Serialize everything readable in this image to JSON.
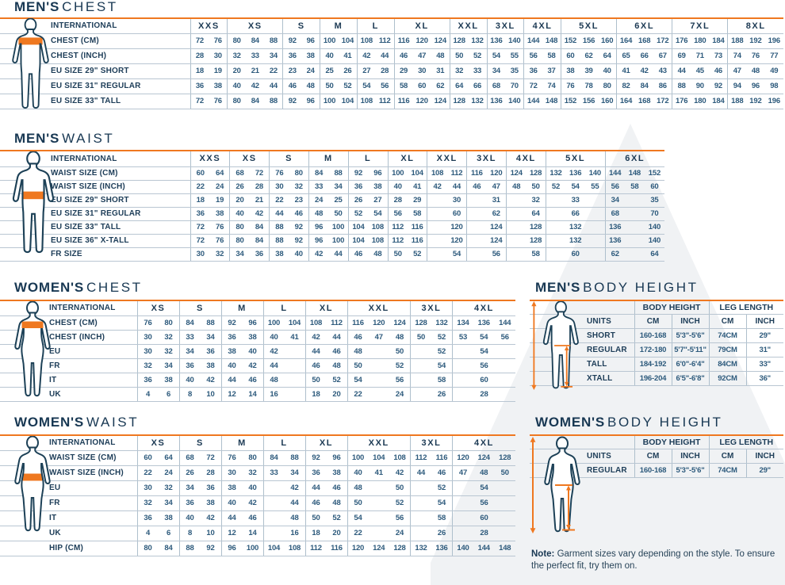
{
  "page": {
    "note_bold": "Note:",
    "note_text": "Garment sizes vary depending on the style. To ensure the perfect fit, try them on."
  },
  "colors": {
    "accent_orange": "#ef7820",
    "navy_outline": "#1d4157",
    "number_blue": "#2d5a7c",
    "label_navy": "#1d3d58",
    "grid_line": "#b9c6d2"
  },
  "tables": {
    "mens_chest": {
      "title_bold": "MEN'S",
      "title_rest": "CHEST",
      "label_header": "INTERNATIONAL",
      "groups": [
        {
          "label": "XXS",
          "cols": 2
        },
        {
          "label": "XS",
          "cols": 3
        },
        {
          "label": "S",
          "cols": 2
        },
        {
          "label": "M",
          "cols": 2
        },
        {
          "label": "L",
          "cols": 2
        },
        {
          "label": "XL",
          "cols": 3
        },
        {
          "label": "XXL",
          "cols": 2
        },
        {
          "label": "3XL",
          "cols": 2
        },
        {
          "label": "4XL",
          "cols": 2
        },
        {
          "label": "5XL",
          "cols": 3
        },
        {
          "label": "6XL",
          "cols": 3
        },
        {
          "label": "7XL",
          "cols": 3
        },
        {
          "label": "8XL",
          "cols": 3
        }
      ],
      "rows": [
        {
          "label": "CHEST (CM)",
          "cells": [
            "72",
            "76",
            "80",
            "84",
            "88",
            "92",
            "96",
            "100",
            "104",
            "108",
            "112",
            "116",
            "120",
            "124",
            "128",
            "132",
            "136",
            "140",
            "144",
            "148",
            "152",
            "156",
            "160",
            "164",
            "168",
            "172",
            "176",
            "180",
            "184",
            "188",
            "192",
            "196"
          ]
        },
        {
          "label": "CHEST (INCH)",
          "cells": [
            "28",
            "30",
            "32",
            "33",
            "34",
            "36",
            "38",
            "40",
            "41",
            "42",
            "44",
            "46",
            "47",
            "48",
            "50",
            "52",
            "54",
            "55",
            "56",
            "58",
            "60",
            "62",
            "64",
            "65",
            "66",
            "67",
            "69",
            "71",
            "73",
            "74",
            "76",
            "77"
          ]
        },
        {
          "label": "EU SIZE 29\" SHORT",
          "cells": [
            "18",
            "19",
            "20",
            "21",
            "22",
            "23",
            "24",
            "25",
            "26",
            "27",
            "28",
            "29",
            "30",
            "31",
            "32",
            "33",
            "34",
            "35",
            "36",
            "37",
            "38",
            "39",
            "40",
            "41",
            "42",
            "43",
            "44",
            "45",
            "46",
            "47",
            "48",
            "49"
          ]
        },
        {
          "label": "EU SIZE 31\" REGULAR",
          "cells": [
            "36",
            "38",
            "40",
            "42",
            "44",
            "46",
            "48",
            "50",
            "52",
            "54",
            "56",
            "58",
            "60",
            "62",
            "64",
            "66",
            "68",
            "70",
            "72",
            "74",
            "76",
            "78",
            "80",
            "82",
            "84",
            "86",
            "88",
            "90",
            "92",
            "94",
            "96",
            "98"
          ]
        },
        {
          "label": "EU SIZE 33\" TALL",
          "cells": [
            "72",
            "76",
            "80",
            "84",
            "88",
            "92",
            "96",
            "100",
            "104",
            "108",
            "112",
            "116",
            "120",
            "124",
            "128",
            "132",
            "136",
            "140",
            "144",
            "148",
            "152",
            "156",
            "160",
            "164",
            "168",
            "172",
            "176",
            "180",
            "184",
            "188",
            "192",
            "196"
          ]
        }
      ]
    },
    "mens_waist": {
      "title_bold": "MEN'S",
      "title_rest": "WAIST",
      "label_header": "INTERNATIONAL",
      "groups": [
        {
          "label": "XXS",
          "cols": 2
        },
        {
          "label": "XS",
          "cols": 2
        },
        {
          "label": "S",
          "cols": 2
        },
        {
          "label": "M",
          "cols": 2
        },
        {
          "label": "L",
          "cols": 2
        },
        {
          "label": "XL",
          "cols": 2
        },
        {
          "label": "XXL",
          "cols": 2
        },
        {
          "label": "3XL",
          "cols": 2
        },
        {
          "label": "4XL",
          "cols": 2
        },
        {
          "label": "5XL",
          "cols": 3
        },
        {
          "label": "6XL",
          "cols": 3
        }
      ],
      "rows": [
        {
          "label": "WAIST SIZE (CM)",
          "cells": [
            "60",
            "64",
            "68",
            "72",
            "76",
            "80",
            "84",
            "88",
            "92",
            "96",
            "100",
            "104",
            "108",
            "112",
            "116",
            "120",
            "124",
            "128",
            "132",
            "136",
            "140",
            "144",
            "148",
            "152"
          ]
        },
        {
          "label": "WAIST SIZE (INCH)",
          "cells": [
            "22",
            "24",
            "26",
            "28",
            "30",
            "32",
            "33",
            "34",
            "36",
            "38",
            "40",
            "41",
            "42",
            "44",
            "46",
            "47",
            "48",
            "50",
            "52",
            "54",
            "55",
            "56",
            "58",
            "60"
          ]
        },
        {
          "label": "EU SIZE 29\" SHORT",
          "cells": [
            "18",
            "19",
            "20",
            "21",
            "22",
            "23",
            "24",
            "25",
            "26",
            "27",
            "28",
            "29",
            "",
            "30",
            "",
            "31",
            "",
            "32",
            [
              "33",
              3
            ],
            "34",
            "",
            "35"
          ]
        },
        {
          "label": "EU SIZE 31\" REGULAR",
          "cells": [
            "36",
            "38",
            "40",
            "42",
            "44",
            "46",
            "48",
            "50",
            "52",
            "54",
            "56",
            "58",
            "",
            "60",
            "",
            "62",
            "",
            "64",
            [
              "66",
              3
            ],
            "68",
            "",
            "70"
          ]
        },
        {
          "label": "EU SIZE 33\" TALL",
          "cells": [
            "72",
            "76",
            "80",
            "84",
            "88",
            "92",
            "96",
            "100",
            "104",
            "108",
            "112",
            "116",
            "",
            "120",
            "",
            "124",
            "",
            "128",
            [
              "132",
              3
            ],
            "136",
            "",
            "140"
          ]
        },
        {
          "label": "EU SIZE 36\" X-TALL",
          "cells": [
            "72",
            "76",
            "80",
            "84",
            "88",
            "92",
            "96",
            "100",
            "104",
            "108",
            "112",
            "116",
            "",
            "120",
            "",
            "124",
            "",
            "128",
            [
              "132",
              3
            ],
            "136",
            "",
            "140"
          ]
        },
        {
          "label": "FR SIZE",
          "cells": [
            "30",
            "32",
            "34",
            "36",
            "38",
            "40",
            "42",
            "44",
            "46",
            "48",
            "50",
            "52",
            "",
            "54",
            "",
            "56",
            "",
            "58",
            [
              "60",
              3
            ],
            "62",
            "",
            "64"
          ]
        }
      ]
    },
    "womens_chest": {
      "title_bold": "WOMEN'S",
      "title_rest": "CHEST",
      "label_header": "INTERNATIONAL",
      "groups": [
        {
          "label": "XS",
          "cols": 2
        },
        {
          "label": "S",
          "cols": 2
        },
        {
          "label": "M",
          "cols": 2
        },
        {
          "label": "L",
          "cols": 2
        },
        {
          "label": "XL",
          "cols": 2
        },
        {
          "label": "XXL",
          "cols": 3
        },
        {
          "label": "3XL",
          "cols": 2
        },
        {
          "label": "4XL",
          "cols": 3
        }
      ],
      "rows": [
        {
          "label": "CHEST (CM)",
          "cells": [
            "76",
            "80",
            "84",
            "88",
            "92",
            "96",
            "100",
            "104",
            "108",
            "112",
            "116",
            "120",
            "124",
            "128",
            "132",
            "134",
            "136",
            "144"
          ]
        },
        {
          "label": "CHEST (INCH)",
          "cells": [
            "30",
            "32",
            "33",
            "34",
            "36",
            "38",
            "40",
            "41",
            "42",
            "44",
            "46",
            "47",
            "48",
            "50",
            "52",
            "53",
            "54",
            "56"
          ]
        },
        {
          "label": "EU",
          "cells": [
            "30",
            "32",
            "34",
            "36",
            "38",
            "40",
            "42",
            "",
            "44",
            "46",
            "48",
            "",
            "50",
            "",
            "52",
            [
              "54",
              3
            ]
          ]
        },
        {
          "label": "FR",
          "cells": [
            "32",
            "34",
            "36",
            "38",
            "40",
            "42",
            "44",
            "",
            "46",
            "48",
            "50",
            "",
            "52",
            "",
            "54",
            [
              "56",
              3
            ]
          ]
        },
        {
          "label": "IT",
          "cells": [
            "36",
            "38",
            "40",
            "42",
            "44",
            "46",
            "48",
            "",
            "50",
            "52",
            "54",
            "",
            "56",
            "",
            "58",
            [
              "60",
              3
            ]
          ]
        },
        {
          "label": "UK",
          "cells": [
            "4",
            "6",
            "8",
            "10",
            "12",
            "14",
            "16",
            "",
            "18",
            "20",
            "22",
            "",
            "24",
            "",
            "26",
            [
              "28",
              3
            ]
          ]
        }
      ]
    },
    "womens_waist": {
      "title_bold": "WOMEN'S",
      "title_rest": "WAIST",
      "label_header": "INTERNATIONAL",
      "groups": [
        {
          "label": "XS",
          "cols": 2
        },
        {
          "label": "S",
          "cols": 2
        },
        {
          "label": "M",
          "cols": 2
        },
        {
          "label": "L",
          "cols": 2
        },
        {
          "label": "XL",
          "cols": 2
        },
        {
          "label": "XXL",
          "cols": 3
        },
        {
          "label": "3XL",
          "cols": 2
        },
        {
          "label": "4XL",
          "cols": 3
        }
      ],
      "rows": [
        {
          "label": "WAIST SIZE (CM)",
          "cells": [
            "60",
            "64",
            "68",
            "72",
            "76",
            "80",
            "84",
            "88",
            "92",
            "96",
            "100",
            "104",
            "108",
            "112",
            "116",
            "120",
            "124",
            "128"
          ]
        },
        {
          "label": "WAIST SIZE (INCH)",
          "cells": [
            "22",
            "24",
            "26",
            "28",
            "30",
            "32",
            "33",
            "34",
            "36",
            "38",
            "40",
            "41",
            "42",
            "44",
            "46",
            "47",
            "48",
            "50"
          ]
        },
        {
          "label": "EU",
          "cells": [
            "30",
            "32",
            "34",
            "36",
            "38",
            "40",
            "",
            "42",
            "44",
            "46",
            "48",
            "",
            "50",
            "",
            "52",
            [
              "54",
              3
            ]
          ]
        },
        {
          "label": "FR",
          "cells": [
            "32",
            "34",
            "36",
            "38",
            "40",
            "42",
            "",
            "44",
            "46",
            "48",
            "50",
            "",
            "52",
            "",
            "54",
            [
              "56",
              3
            ]
          ]
        },
        {
          "label": "IT",
          "cells": [
            "36",
            "38",
            "40",
            "42",
            "44",
            "46",
            "",
            "48",
            "50",
            "52",
            "54",
            "",
            "56",
            "",
            "58",
            [
              "60",
              3
            ]
          ]
        },
        {
          "label": "UK",
          "cells": [
            "4",
            "6",
            "8",
            "10",
            "12",
            "14",
            "",
            "16",
            "18",
            "20",
            "22",
            "",
            "24",
            "",
            "26",
            [
              "28",
              3
            ]
          ]
        },
        {
          "label": "HIP (CM)",
          "cells": [
            "80",
            "84",
            "88",
            "92",
            "96",
            "100",
            "104",
            "108",
            "112",
            "116",
            "120",
            "124",
            "128",
            "132",
            "136",
            "140",
            "144",
            "148"
          ]
        }
      ]
    },
    "mens_height": {
      "title_bold": "MEN'S",
      "title_rest": "BODY HEIGHT",
      "group_headers": [
        "BODY HEIGHT",
        "LEG LENGTH"
      ],
      "units_label": "UNITS",
      "col_units": [
        "CM",
        "INCH",
        "CM",
        "INCH"
      ],
      "rows": [
        {
          "label": "SHORT",
          "cells": [
            "160-168",
            "5'3\"-5'6\"",
            "74CM",
            "29\""
          ]
        },
        {
          "label": "REGULAR",
          "cells": [
            "172-180",
            "5'7\"-5'11\"",
            "79CM",
            "31\""
          ]
        },
        {
          "label": "TALL",
          "cells": [
            "184-192",
            "6'0\"-6'4\"",
            "84CM",
            "33\""
          ]
        },
        {
          "label": "XTALL",
          "cells": [
            "196-204",
            "6'5\"-6'8\"",
            "92CM",
            "36\""
          ]
        }
      ]
    },
    "womens_height": {
      "title_bold": "WOMEN'S",
      "title_rest": "BODY HEIGHT",
      "group_headers": [
        "BODY HEIGHT",
        "LEG LENGTH"
      ],
      "units_label": "UNITS",
      "col_units": [
        "CM",
        "INCH",
        "CM",
        "INCH"
      ],
      "rows": [
        {
          "label": "REGULAR",
          "cells": [
            "160-168",
            "5'3\"-5'6\"",
            "74CM",
            "29\""
          ]
        }
      ]
    }
  }
}
